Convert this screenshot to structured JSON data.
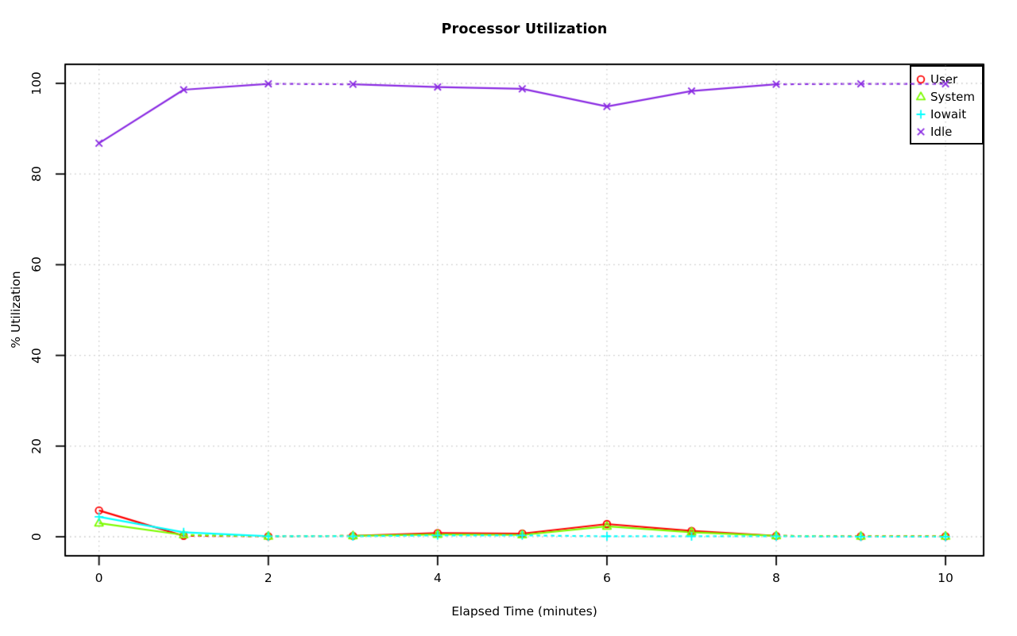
{
  "title": "Processor Utilization",
  "chart_data": {
    "type": "line",
    "title": "Processor Utilization",
    "xlabel": "Elapsed Time (minutes)",
    "ylabel": "% Utilization",
    "x": [
      0,
      1,
      2,
      3,
      4,
      5,
      6,
      7,
      8,
      9,
      10
    ],
    "xticks": [
      0,
      2,
      4,
      6,
      8,
      10
    ],
    "yticks": [
      0,
      20,
      40,
      60,
      80,
      100
    ],
    "xlim": [
      -0.4,
      10.45
    ],
    "ylim": [
      -4.2,
      104.2
    ],
    "grid": true,
    "grid_style": "dotted",
    "legend_position": "topright",
    "series": [
      {
        "name": "User",
        "color": "#ff0000",
        "marker": "circle",
        "values": [
          5.8,
          0.2,
          0.1,
          0.2,
          0.8,
          0.7,
          2.8,
          1.3,
          0.2,
          0.1,
          0.1
        ]
      },
      {
        "name": "System",
        "color": "#7dfc00",
        "marker": "triangle",
        "values": [
          3.0,
          0.4,
          0.1,
          0.2,
          0.5,
          0.4,
          2.3,
          1.0,
          0.2,
          0.1,
          0.1
        ]
      },
      {
        "name": "Iowait",
        "color": "#00ffff",
        "marker": "plus",
        "values": [
          4.4,
          1.0,
          0.1,
          0.1,
          0.3,
          0.3,
          0.1,
          0.1,
          0.1,
          0.0,
          0.0
        ]
      },
      {
        "name": "Idle",
        "color": "#8a2be2",
        "marker": "x",
        "values": [
          86.8,
          98.6,
          99.9,
          99.8,
          99.2,
          98.8,
          94.9,
          98.3,
          99.8,
          99.9,
          99.9
        ]
      }
    ]
  },
  "colors": {
    "grid": "#c8c8c8",
    "axis": "#000000",
    "background": "#ffffff"
  }
}
